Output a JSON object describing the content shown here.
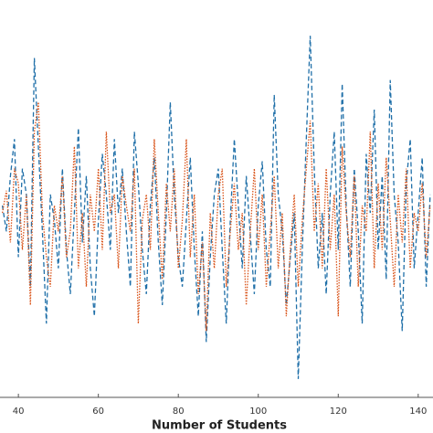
{
  "chart_data": {
    "type": "line",
    "xlabel": "Number of Students",
    "xlim": [
      35.4,
      143.7
    ],
    "xticks": [
      40,
      60,
      80,
      100,
      120,
      140
    ],
    "ylim": [
      0,
      1.04
    ],
    "x": [
      36,
      37,
      38,
      39,
      40,
      41,
      42,
      43,
      44,
      45,
      46,
      47,
      48,
      49,
      50,
      51,
      52,
      53,
      54,
      55,
      56,
      57,
      58,
      59,
      60,
      61,
      62,
      63,
      64,
      65,
      66,
      67,
      68,
      69,
      70,
      71,
      72,
      73,
      74,
      75,
      76,
      77,
      78,
      79,
      80,
      81,
      82,
      83,
      84,
      85,
      86,
      87,
      88,
      89,
      90,
      91,
      92,
      93,
      94,
      95,
      96,
      97,
      98,
      99,
      100,
      101,
      102,
      103,
      104,
      105,
      106,
      107,
      108,
      109,
      110,
      111,
      112,
      113,
      114,
      115,
      116,
      117,
      118,
      119,
      120,
      121,
      122,
      123,
      124,
      125,
      126,
      127,
      128,
      129,
      130,
      131,
      132,
      133,
      134,
      135,
      136,
      137,
      138,
      139,
      140,
      141,
      142,
      143
    ],
    "series": [
      {
        "color": "#1f6fa8",
        "linestyle": "dashed",
        "values": [
          0.52,
          0.45,
          0.6,
          0.7,
          0.38,
          0.62,
          0.55,
          0.3,
          0.92,
          0.68,
          0.45,
          0.2,
          0.55,
          0.48,
          0.35,
          0.62,
          0.4,
          0.28,
          0.5,
          0.73,
          0.42,
          0.6,
          0.35,
          0.22,
          0.48,
          0.66,
          0.55,
          0.4,
          0.7,
          0.5,
          0.62,
          0.45,
          0.3,
          0.72,
          0.58,
          0.4,
          0.28,
          0.52,
          0.65,
          0.42,
          0.25,
          0.5,
          0.8,
          0.55,
          0.38,
          0.3,
          0.48,
          0.65,
          0.4,
          0.22,
          0.45,
          0.15,
          0.38,
          0.55,
          0.62,
          0.4,
          0.2,
          0.48,
          0.7,
          0.52,
          0.35,
          0.6,
          0.44,
          0.28,
          0.52,
          0.64,
          0.4,
          0.3,
          0.82,
          0.55,
          0.45,
          0.25,
          0.38,
          0.5,
          0.05,
          0.4,
          0.7,
          0.98,
          0.62,
          0.35,
          0.5,
          0.28,
          0.55,
          0.72,
          0.4,
          0.85,
          0.52,
          0.3,
          0.62,
          0.45,
          0.2,
          0.66,
          0.5,
          0.78,
          0.4,
          0.6,
          0.32,
          0.86,
          0.55,
          0.42,
          0.18,
          0.58,
          0.7,
          0.35,
          0.5,
          0.65,
          0.3,
          0.55
        ]
      },
      {
        "color": "#d95319",
        "linestyle": "dotted",
        "values": [
          0.5,
          0.56,
          0.42,
          0.62,
          0.58,
          0.4,
          0.55,
          0.25,
          0.72,
          0.8,
          0.5,
          0.38,
          0.3,
          0.52,
          0.45,
          0.6,
          0.38,
          0.45,
          0.68,
          0.35,
          0.5,
          0.3,
          0.55,
          0.45,
          0.62,
          0.4,
          0.72,
          0.5,
          0.55,
          0.35,
          0.6,
          0.52,
          0.45,
          0.62,
          0.2,
          0.48,
          0.55,
          0.4,
          0.7,
          0.5,
          0.32,
          0.58,
          0.45,
          0.62,
          0.35,
          0.48,
          0.7,
          0.38,
          0.55,
          0.28,
          0.42,
          0.18,
          0.5,
          0.35,
          0.55,
          0.62,
          0.3,
          0.45,
          0.58,
          0.4,
          0.5,
          0.25,
          0.45,
          0.62,
          0.4,
          0.55,
          0.3,
          0.45,
          0.6,
          0.35,
          0.5,
          0.22,
          0.4,
          0.55,
          0.3,
          0.48,
          0.62,
          0.75,
          0.45,
          0.58,
          0.35,
          0.62,
          0.4,
          0.55,
          0.22,
          0.68,
          0.5,
          0.38,
          0.6,
          0.3,
          0.52,
          0.45,
          0.72,
          0.35,
          0.58,
          0.4,
          0.65,
          0.48,
          0.3,
          0.55,
          0.42,
          0.62,
          0.35,
          0.5,
          0.45,
          0.58,
          0.38,
          0.52
        ]
      }
    ]
  }
}
